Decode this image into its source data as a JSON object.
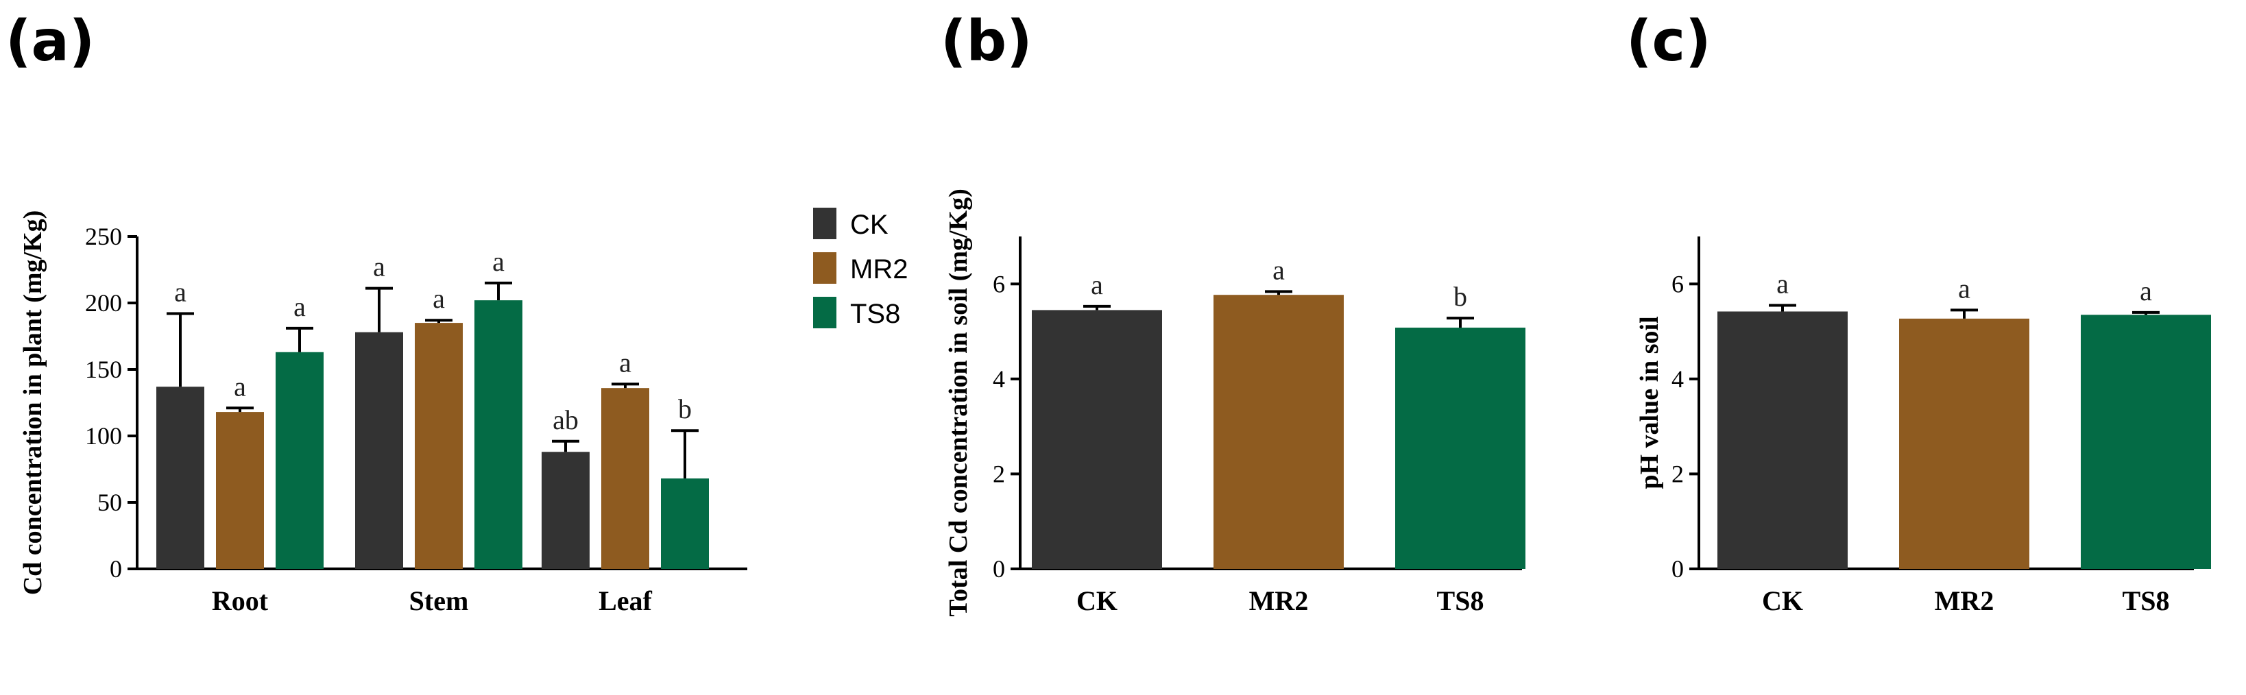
{
  "colors": {
    "CK": "#333333",
    "MR2": "#8e5b20",
    "TS8": "#046b45"
  },
  "legend": [
    {
      "label": "CK",
      "key": "CK"
    },
    {
      "label": "MR2",
      "key": "MR2"
    },
    {
      "label": "TS8",
      "key": "TS8"
    }
  ],
  "chart_data": [
    {
      "panel": "a",
      "panel_label": "(a)",
      "type": "bar",
      "ylabel": "Cd concentration in plant (mg/Kg)",
      "ylim": [
        0,
        250
      ],
      "yticks": [
        "0",
        "50",
        "100",
        "150",
        "200",
        "250"
      ],
      "categories": [
        "Root",
        "Stem",
        "Leaf"
      ],
      "series": [
        {
          "name": "CK",
          "values": [
            137,
            178,
            88
          ],
          "errors": [
            55,
            33,
            8
          ],
          "labels": [
            "a",
            "a",
            "ab"
          ]
        },
        {
          "name": "MR2",
          "values": [
            118,
            185,
            136
          ],
          "errors": [
            3,
            2,
            3
          ],
          "labels": [
            "a",
            "a",
            "a"
          ]
        },
        {
          "name": "TS8",
          "values": [
            163,
            202,
            68
          ],
          "errors": [
            18,
            13,
            36
          ],
          "labels": [
            "a",
            "a",
            "b"
          ]
        }
      ]
    },
    {
      "panel": "b",
      "panel_label": "(b)",
      "type": "bar",
      "ylabel": "Total Cd concentration in soil (mg/Kg)",
      "ylim": [
        0,
        7
      ],
      "yticks": [
        "0",
        "2",
        "4",
        "6"
      ],
      "categories": [
        "CK",
        "MR2",
        "TS8"
      ],
      "values": [
        5.45,
        5.77,
        5.08
      ],
      "errors": [
        0.08,
        0.07,
        0.2
      ],
      "labels": [
        "a",
        "a",
        "b"
      ]
    },
    {
      "panel": "c",
      "panel_label": "(c)",
      "type": "bar",
      "ylabel": "pH value in soil",
      "ylim": [
        0,
        7
      ],
      "yticks": [
        "0",
        "2",
        "4",
        "6"
      ],
      "categories": [
        "CK",
        "MR2",
        "TS8"
      ],
      "values": [
        5.42,
        5.27,
        5.35
      ],
      "errors": [
        0.13,
        0.18,
        0.05
      ],
      "labels": [
        "a",
        "a",
        "a"
      ]
    }
  ]
}
